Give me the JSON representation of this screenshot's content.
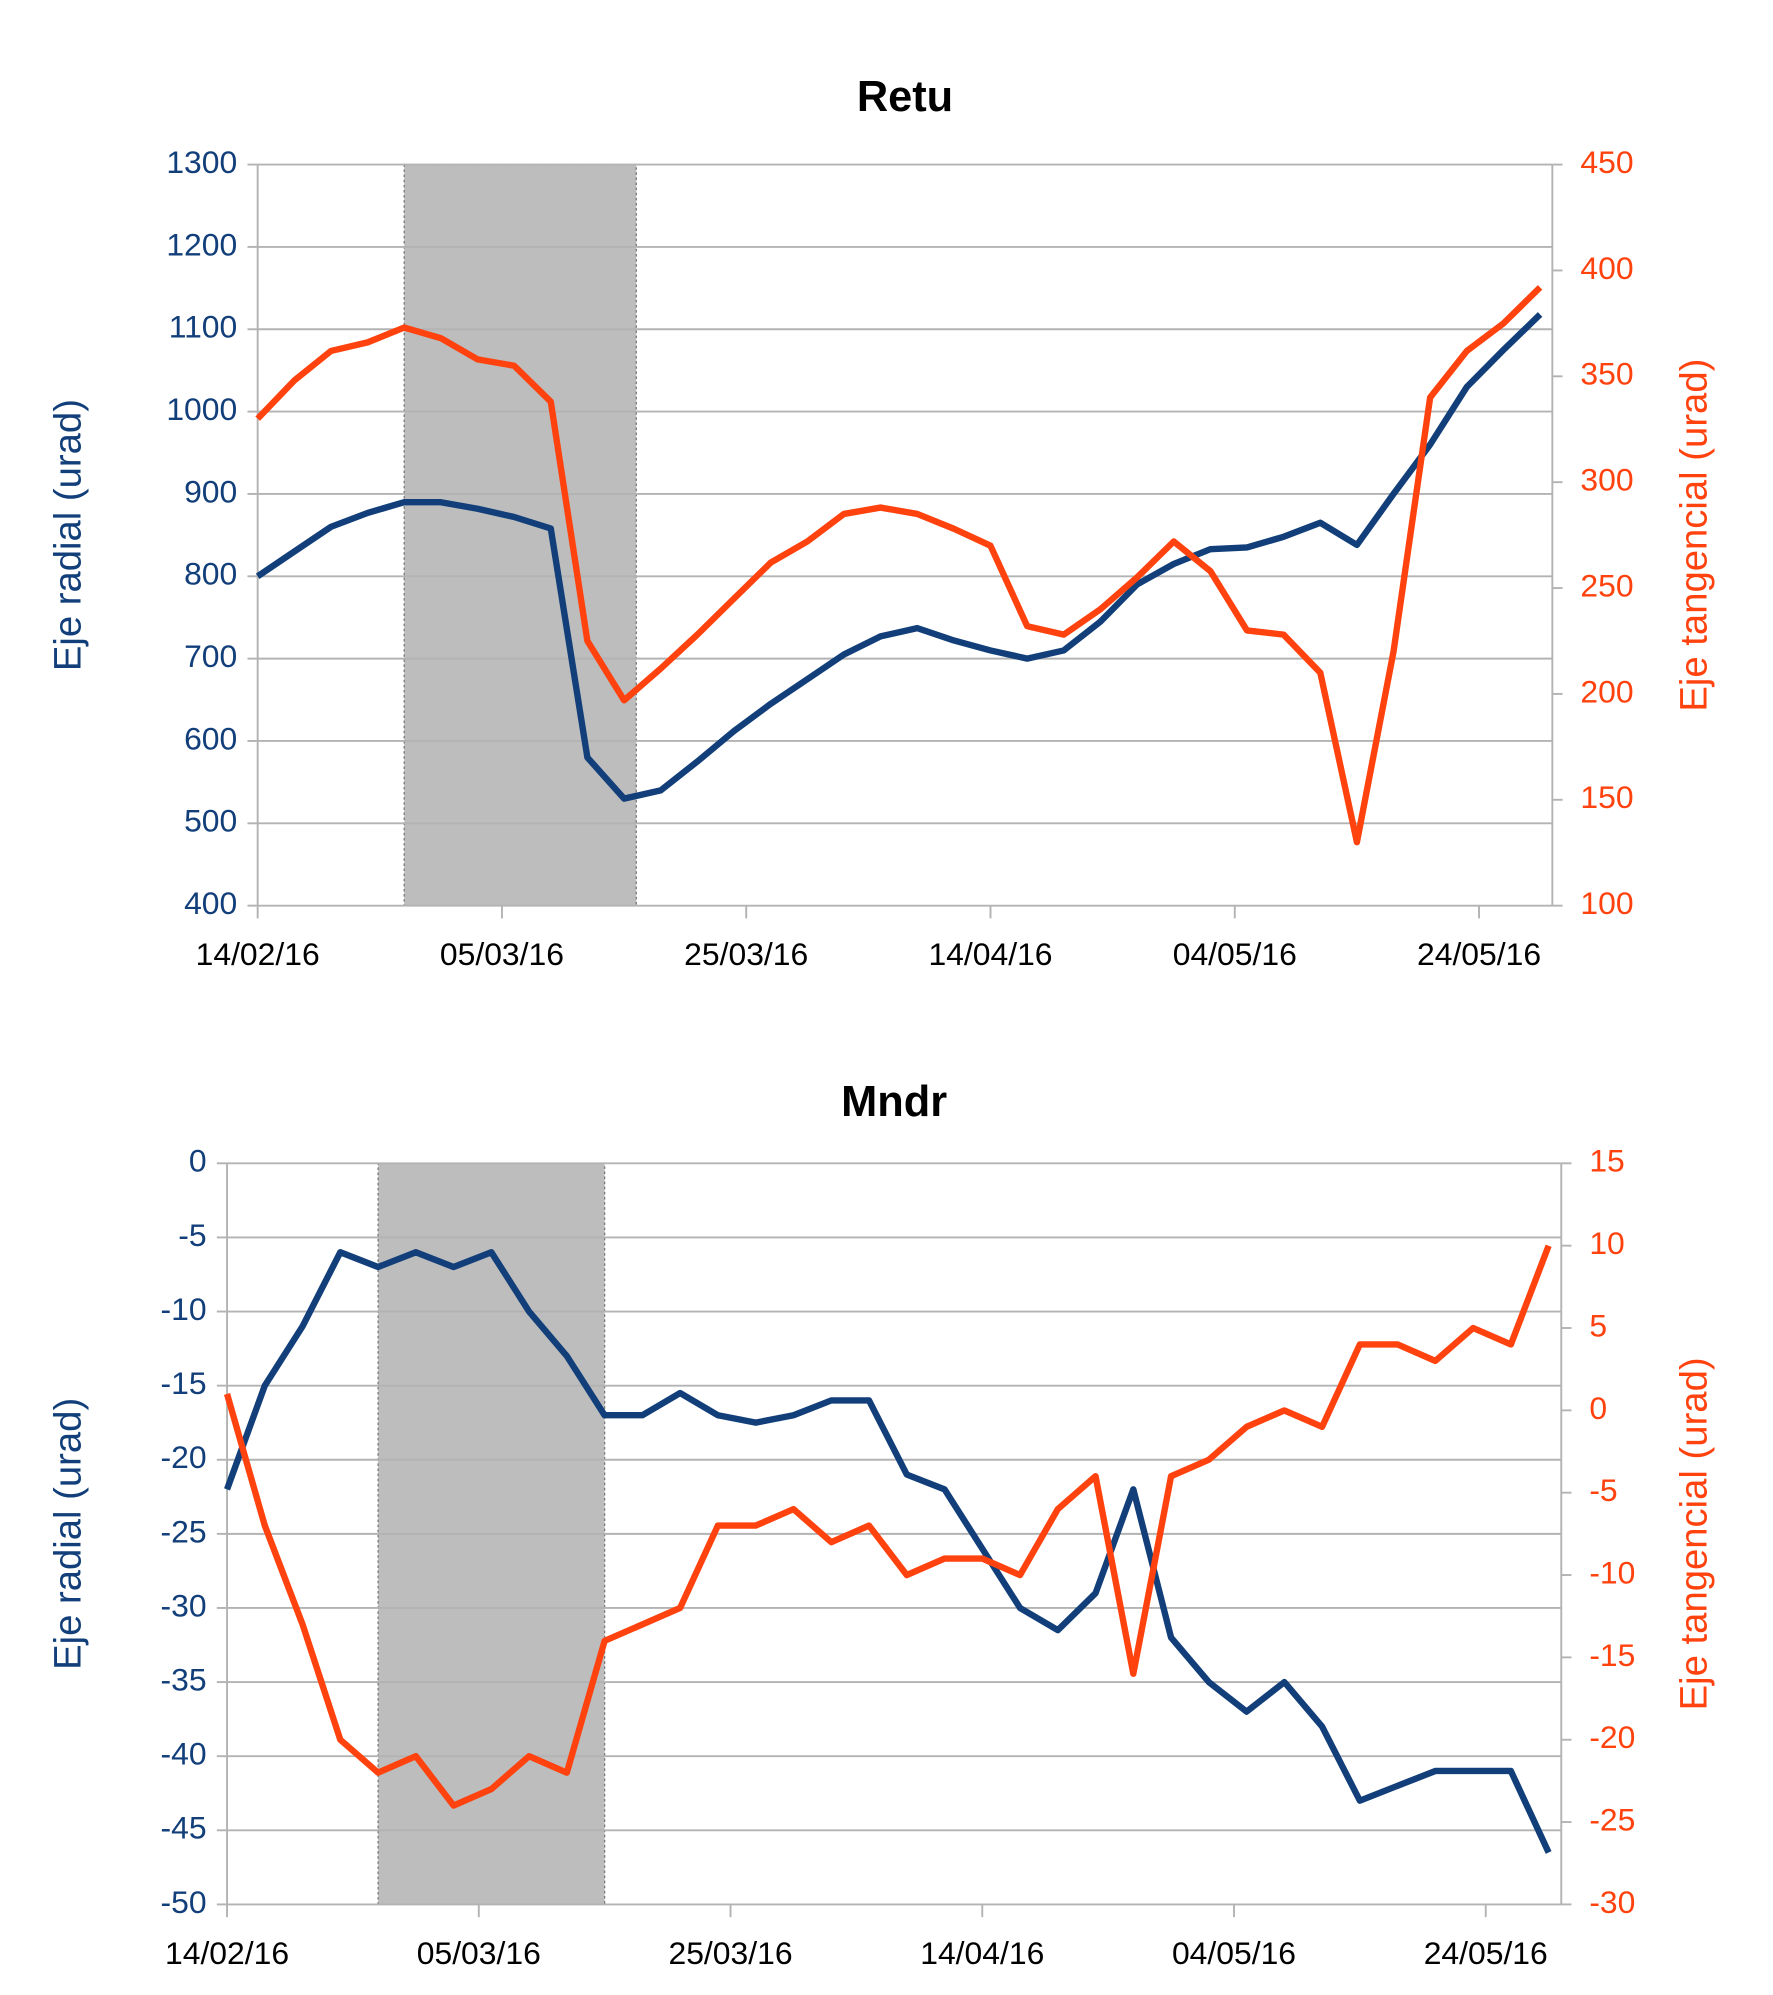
{
  "chart_data": [
    {
      "type": "line",
      "title": "Retu",
      "ylabel": "Eje radial (urad)",
      "y2label": "Eje tangencial (urad)",
      "x": [
        "14/02/16",
        "17/02/16",
        "20/02/16",
        "23/02/16",
        "26/02/16",
        "29/02/16",
        "03/03/16",
        "06/03/16",
        "09/03/16",
        "12/03/16",
        "15/03/16",
        "18/03/16",
        "21/03/16",
        "24/03/16",
        "27/03/16",
        "30/03/16",
        "02/04/16",
        "05/04/16",
        "08/04/16",
        "11/04/16",
        "14/04/16",
        "17/04/16",
        "20/04/16",
        "23/04/16",
        "26/04/16",
        "29/04/16",
        "02/05/16",
        "05/05/16",
        "08/05/16",
        "11/05/16",
        "14/05/16",
        "17/05/16",
        "20/05/16",
        "23/05/16",
        "26/05/16",
        "29/05/16"
      ],
      "series": [
        {
          "color": "#123f7a",
          "axis": "y",
          "values": [
            800,
            830,
            860,
            877,
            890,
            890,
            882,
            872,
            858,
            580,
            530,
            540,
            575,
            612,
            645,
            675,
            705,
            727,
            737,
            722,
            710,
            700,
            710,
            745,
            790,
            815,
            833,
            835,
            848,
            865,
            838,
            900,
            960,
            1030,
            1075,
            1118
          ]
        },
        {
          "color": "#ff420e",
          "axis": "y2",
          "values": [
            330,
            348,
            362,
            366,
            373,
            368,
            358,
            355,
            338,
            225,
            197,
            212,
            228,
            245,
            262,
            272,
            285,
            288,
            285,
            278,
            270,
            232,
            228,
            240,
            255,
            272,
            258,
            230,
            228,
            210,
            130,
            220,
            340,
            362,
            375,
            392
          ]
        }
      ],
      "xlim": [
        "14/02/16",
        "30/05/16"
      ],
      "xticks": [
        "14/02/16",
        "05/03/16",
        "25/03/16",
        "14/04/16",
        "04/05/16",
        "24/05/16"
      ],
      "ylim": [
        400,
        1300
      ],
      "yticks": [
        400,
        500,
        600,
        700,
        800,
        900,
        1000,
        1100,
        1200,
        1300
      ],
      "y2lim": [
        100,
        450
      ],
      "y2ticks": [
        100,
        150,
        200,
        250,
        300,
        350,
        400,
        450
      ],
      "grid": true,
      "shaded_span": [
        "26/02/16",
        "16/03/16"
      ]
    },
    {
      "type": "line",
      "title": "Mndr",
      "ylabel": "Eje radial (urad)",
      "y2label": "Eje tangencial (urad)",
      "x": [
        "14/02/16",
        "17/02/16",
        "20/02/16",
        "23/02/16",
        "26/02/16",
        "29/02/16",
        "03/03/16",
        "06/03/16",
        "09/03/16",
        "12/03/16",
        "15/03/16",
        "18/03/16",
        "21/03/16",
        "24/03/16",
        "27/03/16",
        "30/03/16",
        "02/04/16",
        "05/04/16",
        "08/04/16",
        "11/04/16",
        "14/04/16",
        "17/04/16",
        "20/04/16",
        "23/04/16",
        "26/04/16",
        "29/04/16",
        "02/05/16",
        "05/05/16",
        "08/05/16",
        "11/05/16",
        "14/05/16",
        "17/05/16",
        "20/05/16",
        "23/05/16",
        "26/05/16",
        "29/05/16"
      ],
      "series": [
        {
          "color": "#123f7a",
          "axis": "y",
          "values": [
            -22,
            -15,
            -11,
            -6,
            -7,
            -6,
            -7,
            -6,
            -10,
            -13,
            -17,
            -17,
            -15.5,
            -17,
            -17.5,
            -17,
            -16,
            -16,
            -21,
            -22,
            -26,
            -30,
            -31.5,
            -29,
            -22,
            -32,
            -35,
            -37,
            -35,
            -38,
            -43,
            -42,
            -41,
            -41,
            -41,
            -46.5
          ]
        },
        {
          "color": "#ff420e",
          "axis": "y2",
          "values": [
            1,
            -7,
            -13,
            -20,
            -22,
            -21,
            -24,
            -23,
            -21,
            -22,
            -14,
            -13,
            -12,
            -7,
            -7,
            -6,
            -8,
            -7,
            -10,
            -9,
            -9,
            -10,
            -6,
            -4,
            -16,
            -4,
            -3,
            -1,
            0,
            -1,
            4,
            4,
            3,
            5,
            4,
            10
          ]
        }
      ],
      "xlim": [
        "14/02/16",
        "30/05/16"
      ],
      "xticks": [
        "14/02/16",
        "05/03/16",
        "25/03/16",
        "14/04/16",
        "04/05/16",
        "24/05/16"
      ],
      "ylim": [
        -50,
        0
      ],
      "yticks": [
        -50,
        -45,
        -40,
        -35,
        -30,
        -25,
        -20,
        -15,
        -10,
        -5,
        0
      ],
      "y2lim": [
        -30,
        15
      ],
      "y2ticks": [
        -30,
        -25,
        -20,
        -15,
        -10,
        -5,
        0,
        5,
        10,
        15
      ],
      "grid": true,
      "shaded_span": [
        "26/02/16",
        "15/03/16"
      ]
    }
  ]
}
